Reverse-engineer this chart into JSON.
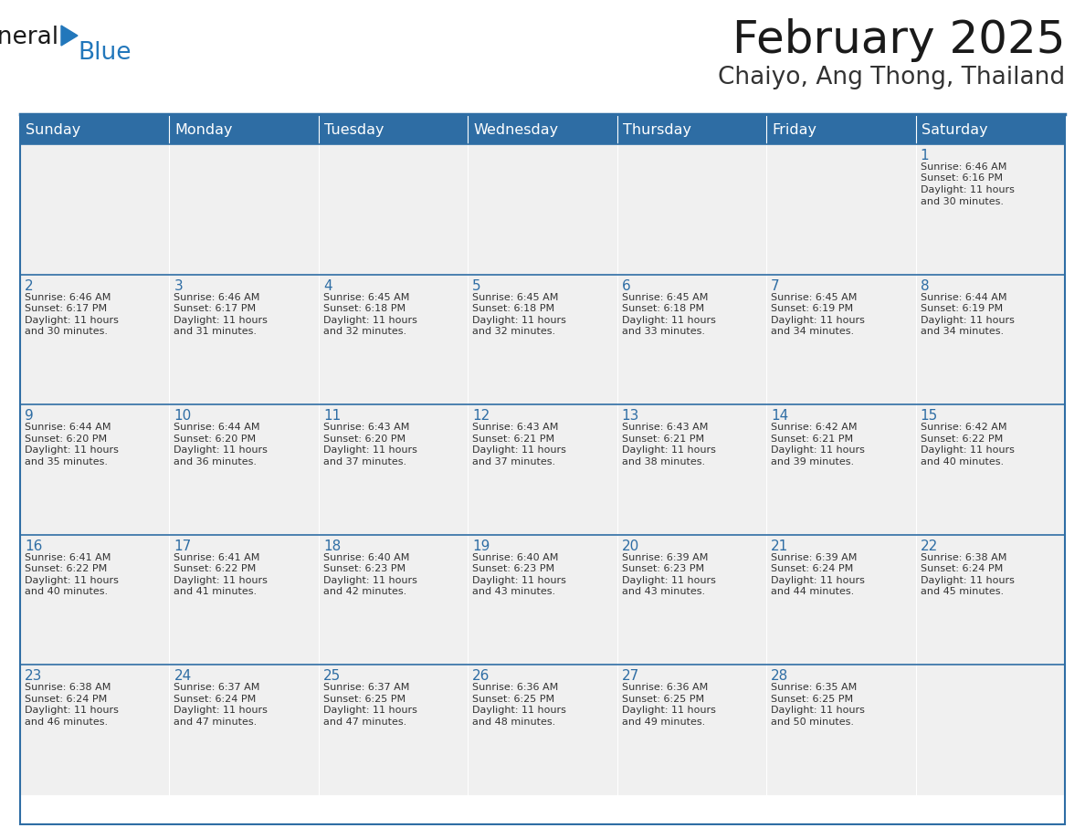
{
  "title": "February 2025",
  "subtitle": "Chaiyo, Ang Thong, Thailand",
  "header_bg_color": "#2E6DA4",
  "header_text_color": "#FFFFFF",
  "cell_bg_color": "#F0F0F0",
  "border_color": "#2E6DA4",
  "day_names": [
    "Sunday",
    "Monday",
    "Tuesday",
    "Wednesday",
    "Thursday",
    "Friday",
    "Saturday"
  ],
  "title_color": "#1a1a1a",
  "subtitle_color": "#333333",
  "day_num_color": "#2E6DA4",
  "cell_text_color": "#333333",
  "logo_text_color": "#1a1a1a",
  "logo_blue_color": "#2277BB",
  "calendar_data": [
    [
      null,
      null,
      null,
      null,
      null,
      null,
      {
        "day": 1,
        "sunrise": "6:46 AM",
        "sunset": "6:16 PM",
        "daylight": "11 hours and 30 minutes"
      }
    ],
    [
      {
        "day": 2,
        "sunrise": "6:46 AM",
        "sunset": "6:17 PM",
        "daylight": "11 hours and 30 minutes"
      },
      {
        "day": 3,
        "sunrise": "6:46 AM",
        "sunset": "6:17 PM",
        "daylight": "11 hours and 31 minutes"
      },
      {
        "day": 4,
        "sunrise": "6:45 AM",
        "sunset": "6:18 PM",
        "daylight": "11 hours and 32 minutes"
      },
      {
        "day": 5,
        "sunrise": "6:45 AM",
        "sunset": "6:18 PM",
        "daylight": "11 hours and 32 minutes"
      },
      {
        "day": 6,
        "sunrise": "6:45 AM",
        "sunset": "6:18 PM",
        "daylight": "11 hours and 33 minutes"
      },
      {
        "day": 7,
        "sunrise": "6:45 AM",
        "sunset": "6:19 PM",
        "daylight": "11 hours and 34 minutes"
      },
      {
        "day": 8,
        "sunrise": "6:44 AM",
        "sunset": "6:19 PM",
        "daylight": "11 hours and 34 minutes"
      }
    ],
    [
      {
        "day": 9,
        "sunrise": "6:44 AM",
        "sunset": "6:20 PM",
        "daylight": "11 hours and 35 minutes"
      },
      {
        "day": 10,
        "sunrise": "6:44 AM",
        "sunset": "6:20 PM",
        "daylight": "11 hours and 36 minutes"
      },
      {
        "day": 11,
        "sunrise": "6:43 AM",
        "sunset": "6:20 PM",
        "daylight": "11 hours and 37 minutes"
      },
      {
        "day": 12,
        "sunrise": "6:43 AM",
        "sunset": "6:21 PM",
        "daylight": "11 hours and 37 minutes"
      },
      {
        "day": 13,
        "sunrise": "6:43 AM",
        "sunset": "6:21 PM",
        "daylight": "11 hours and 38 minutes"
      },
      {
        "day": 14,
        "sunrise": "6:42 AM",
        "sunset": "6:21 PM",
        "daylight": "11 hours and 39 minutes"
      },
      {
        "day": 15,
        "sunrise": "6:42 AM",
        "sunset": "6:22 PM",
        "daylight": "11 hours and 40 minutes"
      }
    ],
    [
      {
        "day": 16,
        "sunrise": "6:41 AM",
        "sunset": "6:22 PM",
        "daylight": "11 hours and 40 minutes"
      },
      {
        "day": 17,
        "sunrise": "6:41 AM",
        "sunset": "6:22 PM",
        "daylight": "11 hours and 41 minutes"
      },
      {
        "day": 18,
        "sunrise": "6:40 AM",
        "sunset": "6:23 PM",
        "daylight": "11 hours and 42 minutes"
      },
      {
        "day": 19,
        "sunrise": "6:40 AM",
        "sunset": "6:23 PM",
        "daylight": "11 hours and 43 minutes"
      },
      {
        "day": 20,
        "sunrise": "6:39 AM",
        "sunset": "6:23 PM",
        "daylight": "11 hours and 43 minutes"
      },
      {
        "day": 21,
        "sunrise": "6:39 AM",
        "sunset": "6:24 PM",
        "daylight": "11 hours and 44 minutes"
      },
      {
        "day": 22,
        "sunrise": "6:38 AM",
        "sunset": "6:24 PM",
        "daylight": "11 hours and 45 minutes"
      }
    ],
    [
      {
        "day": 23,
        "sunrise": "6:38 AM",
        "sunset": "6:24 PM",
        "daylight": "11 hours and 46 minutes"
      },
      {
        "day": 24,
        "sunrise": "6:37 AM",
        "sunset": "6:24 PM",
        "daylight": "11 hours and 47 minutes"
      },
      {
        "day": 25,
        "sunrise": "6:37 AM",
        "sunset": "6:25 PM",
        "daylight": "11 hours and 47 minutes"
      },
      {
        "day": 26,
        "sunrise": "6:36 AM",
        "sunset": "6:25 PM",
        "daylight": "11 hours and 48 minutes"
      },
      {
        "day": 27,
        "sunrise": "6:36 AM",
        "sunset": "6:25 PM",
        "daylight": "11 hours and 49 minutes"
      },
      {
        "day": 28,
        "sunrise": "6:35 AM",
        "sunset": "6:25 PM",
        "daylight": "11 hours and 50 minutes"
      },
      null
    ]
  ]
}
